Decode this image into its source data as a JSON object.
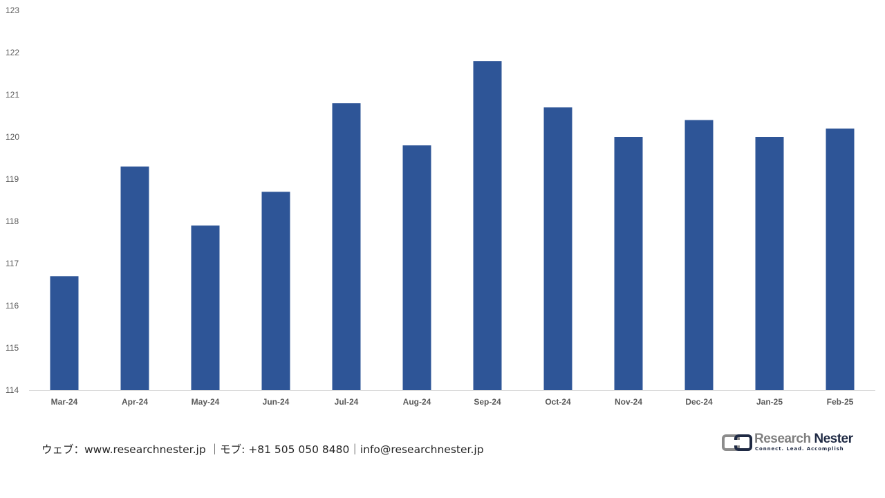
{
  "chart_data": {
    "type": "bar",
    "categories": [
      "Mar-24",
      "Apr-24",
      "May-24",
      "Jun-24",
      "Jul-24",
      "Aug-24",
      "Sep-24",
      "Oct-24",
      "Nov-24",
      "Dec-24",
      "Jan-25",
      "Feb-25"
    ],
    "values": [
      116.7,
      119.3,
      117.9,
      118.7,
      120.8,
      119.8,
      121.8,
      120.7,
      120.0,
      120.4,
      120.0,
      120.2
    ],
    "title": "",
    "xlabel": "",
    "ylabel": "",
    "ylim": [
      114,
      123
    ],
    "yticks": [
      114,
      115,
      116,
      117,
      118,
      119,
      120,
      121,
      122,
      123
    ],
    "bar_color": "#2E5597",
    "grid": false,
    "legend": "none"
  },
  "footer": {
    "contact": "ウェブ：www.researchnester.jp ｜モブ: +81 505 050 8480｜info@researchnester.jp"
  },
  "logo": {
    "name_part1": "Research",
    "name_part2": "Nester",
    "tagline": "Connect. Lead. Accomplish",
    "icon": "research-nester-logo-icon"
  },
  "colors": {
    "bar": "#2E5597",
    "axis_text": "#595959",
    "axis_line": "#d9d9d9"
  }
}
